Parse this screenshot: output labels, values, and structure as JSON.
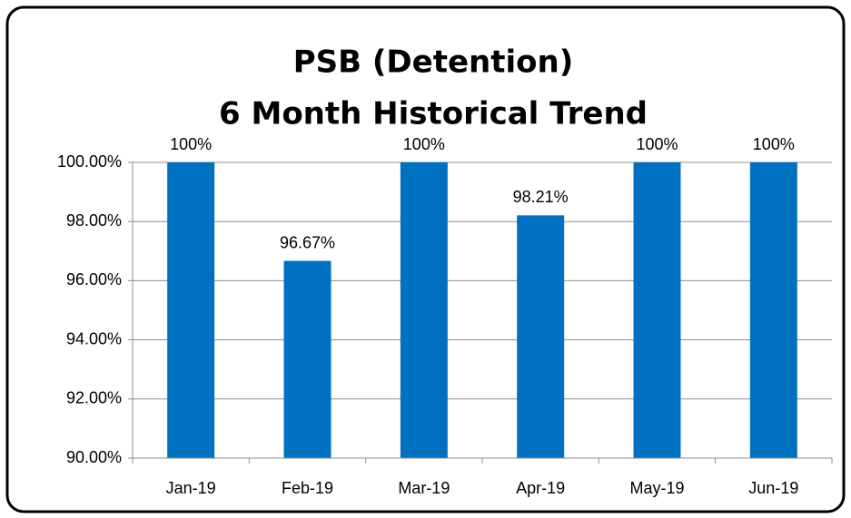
{
  "chart_data": {
    "type": "bar",
    "title": "PSB (Detention)",
    "subtitle": "6 Month Historical Trend",
    "categories": [
      "Jan-19",
      "Feb-19",
      "Mar-19",
      "Apr-19",
      "May-19",
      "Jun-19"
    ],
    "values": [
      100,
      96.67,
      100,
      98.21,
      100,
      100
    ],
    "value_labels": [
      "100%",
      "96.67%",
      "100%",
      "98.21%",
      "100%",
      "100%"
    ],
    "color": "#0070c0",
    "ylim": [
      90,
      100
    ],
    "yticks": [
      {
        "value": 90,
        "label": "90.00%"
      },
      {
        "value": 92,
        "label": "92.00%"
      },
      {
        "value": 94,
        "label": "94.00%"
      },
      {
        "value": 96,
        "label": "96.00%"
      },
      {
        "value": 98,
        "label": "98.00%"
      },
      {
        "value": 100,
        "label": "100.00%"
      }
    ],
    "grid": true
  }
}
